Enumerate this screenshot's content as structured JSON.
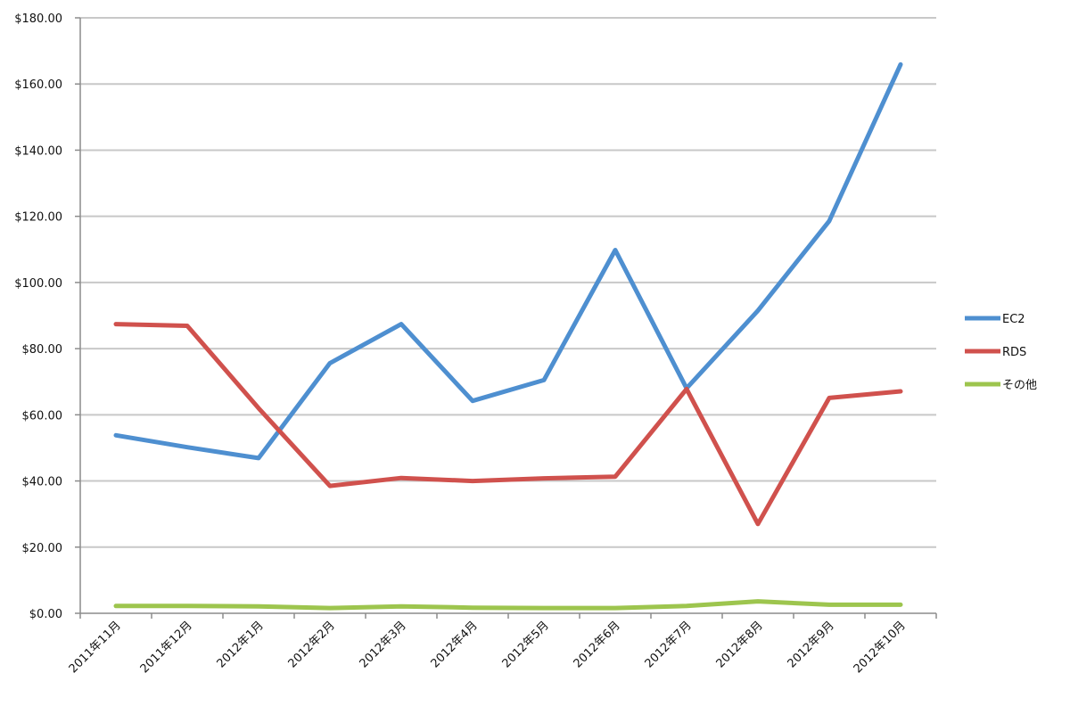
{
  "chart_data": {
    "type": "line",
    "title": "",
    "xlabel": "",
    "ylabel": "",
    "categories": [
      "2011年11月",
      "2011年12月",
      "2012年1月",
      "2012年2月",
      "2012年3月",
      "2012年4月",
      "2012年5月",
      "2012年6月",
      "2012年7月",
      "2012年8月",
      "2012年9月",
      "2012年10月"
    ],
    "ylim": [
      0,
      180
    ],
    "yticks": [
      0,
      20,
      40,
      60,
      80,
      100,
      120,
      140,
      160,
      180
    ],
    "ytick_labels": [
      "$0.00",
      "$20.00",
      "$40.00",
      "$60.00",
      "$80.00",
      "$100.00",
      "$120.00",
      "$140.00",
      "$160.00",
      "$180.00"
    ],
    "grid": true,
    "legend_position": "right",
    "series": [
      {
        "name": "EC2",
        "color": "#4e8fd0",
        "values": [
          53.8,
          50.2,
          46.9,
          75.6,
          87.4,
          64.2,
          70.5,
          109.8,
          68.0,
          91.5,
          118.6,
          165.9
        ]
      },
      {
        "name": "RDS",
        "color": "#d0514d",
        "values": [
          87.4,
          86.9,
          62.0,
          38.5,
          40.9,
          40.0,
          40.8,
          41.3,
          67.8,
          27.0,
          65.1,
          67.1
        ]
      },
      {
        "name": "その他",
        "color": "#9dc54e",
        "values": [
          2.2,
          2.2,
          2.1,
          1.6,
          2.1,
          1.7,
          1.6,
          1.6,
          2.2,
          3.6,
          2.6,
          2.6
        ]
      }
    ]
  }
}
